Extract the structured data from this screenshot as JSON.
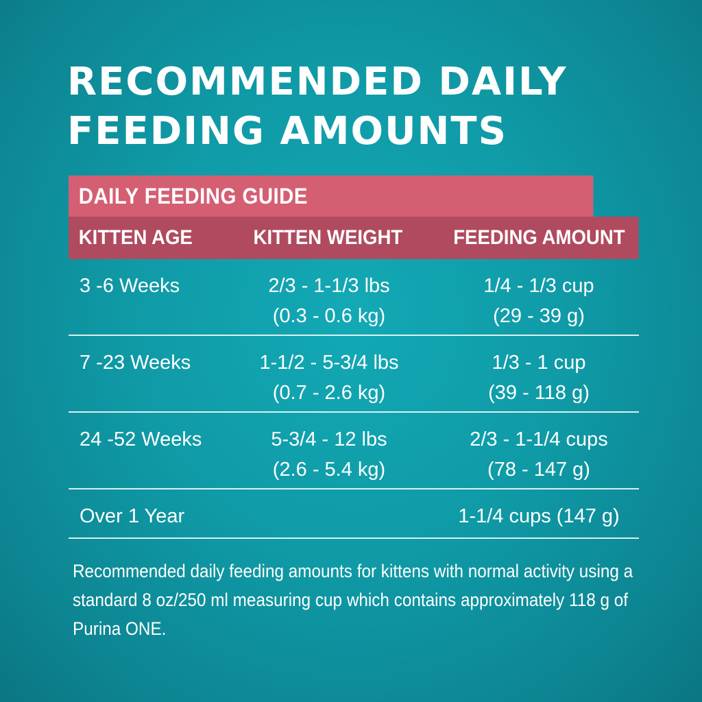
{
  "title": {
    "line1": "RECOMMENDED DAILY",
    "line2": "FEEDING AMOUNTS"
  },
  "guide": {
    "banner": "DAILY FEEDING GUIDE",
    "columns": [
      "KITTEN AGE",
      "KITTEN WEIGHT",
      "FEEDING AMOUNT"
    ],
    "rows": [
      {
        "age": "3 -6 Weeks",
        "weight_line1": "2/3 - 1-1/3 lbs",
        "weight_line2": "(0.3 - 0.6 kg)",
        "amount_line1": "1/4 - 1/3 cup",
        "amount_line2": "(29 - 39 g)"
      },
      {
        "age": "7 -23 Weeks",
        "weight_line1": "1-1/2 - 5-3/4 lbs",
        "weight_line2": "(0.7 - 2.6 kg)",
        "amount_line1": "1/3 - 1 cup",
        "amount_line2": "(39 - 118 g)"
      },
      {
        "age": "24 -52 Weeks",
        "weight_line1": "5-3/4 - 12 lbs",
        "weight_line2": "(2.6 - 5.4 kg)",
        "amount_line1": "2/3 - 1-1/4 cups",
        "amount_line2": "(78 - 147 g)"
      },
      {
        "age": "Over 1 Year",
        "weight_line1": "",
        "weight_line2": "",
        "amount_line1": "1-1/4 cups (147 g)",
        "amount_line2": ""
      }
    ]
  },
  "note": "Recommended daily feeding amounts for kittens with normal activity using a standard 8 oz/250 ml measuring cup which contains approximately 118 g of Purina ONE.",
  "colors": {
    "background": "#0f9aa6",
    "banner": "#d45f73",
    "header": "#b04a5f",
    "text": "#ffffff"
  }
}
